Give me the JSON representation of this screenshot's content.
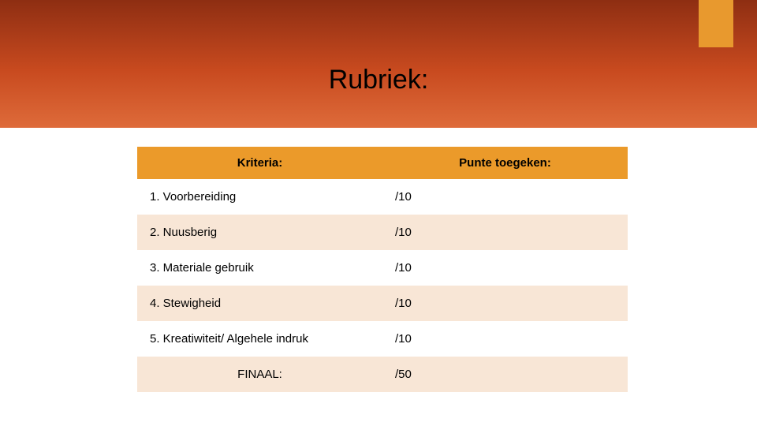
{
  "banner": {
    "gradient_from": "#8e2e12",
    "gradient_mid": "#c84a1f",
    "gradient_to": "#de6b3a",
    "accent_color": "#e8992e"
  },
  "title": "Rubriek:",
  "table": {
    "header_bg": "#eb9a2a",
    "row_odd_bg": "#ffffff",
    "row_even_bg": "#f8e6d6",
    "columns": {
      "kriteria": "Kriteria:",
      "punte": "Punte toegeken:"
    },
    "rows": [
      {
        "kriteria": "1. Voorbereiding",
        "punte": "/10"
      },
      {
        "kriteria": "2. Nuusberig",
        "punte": "/10"
      },
      {
        "kriteria": "3. Materiale gebruik",
        "punte": "/10"
      },
      {
        "kriteria": "4. Stewigheid",
        "punte": "/10"
      },
      {
        "kriteria": "5. Kreatiwiteit/ Algehele indruk",
        "punte": "/10"
      }
    ],
    "final": {
      "label": "FINAAL:",
      "punte": "/50"
    }
  }
}
